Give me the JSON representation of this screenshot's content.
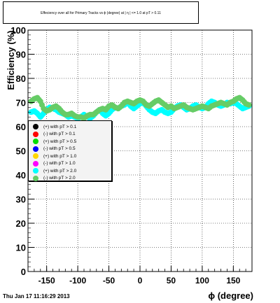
{
  "chart_data": {
    "type": "scatter",
    "title": "Effeciency over all for Primary Tracks vs ϕ (degree) at | η | <= 1.0 at pT > 0.11",
    "xlabel": "ϕ (degree)",
    "ylabel": "Efficiency (%)",
    "xlim": [
      -180,
      180
    ],
    "ylim": [
      0,
      100
    ],
    "xticks": [
      -150,
      -100,
      -50,
      0,
      50,
      100,
      150
    ],
    "yticks": [
      0,
      10,
      20,
      30,
      40,
      50,
      60,
      70,
      80,
      90,
      100
    ],
    "grid": true,
    "legend_position": "left-middle",
    "series": [
      {
        "name": "(+) with pT > 0.1",
        "color": "#000000",
        "values": []
      },
      {
        "name": "(-) with pT > 0.1",
        "color": "#ff0000",
        "values": []
      },
      {
        "name": "(+) with pT > 0.5",
        "color": "#00dd00",
        "values": []
      },
      {
        "name": "(-) with pT > 0.5",
        "color": "#0000ff",
        "values": []
      },
      {
        "name": "(+) with pT > 1.0",
        "color": "#ffd700",
        "values": []
      },
      {
        "name": "(-) with pT > 1.0",
        "color": "#ff00ff",
        "values": []
      },
      {
        "name": "(+) with pT > 2.0",
        "color": "#00ffff",
        "x": [
          -175,
          -170,
          -165,
          -160,
          -155,
          -150,
          -145,
          -140,
          -135,
          -130,
          -125,
          -120,
          -115,
          -110,
          -105,
          -100,
          -95,
          -90,
          -85,
          -80,
          -75,
          -70,
          -65,
          -60,
          -55,
          -50,
          -45,
          -40,
          -35,
          -30,
          -25,
          -20,
          -15,
          -10,
          -5,
          0,
          5,
          10,
          15,
          20,
          25,
          30,
          35,
          40,
          45,
          50,
          55,
          60,
          65,
          70,
          75,
          80,
          85,
          90,
          95,
          100,
          105,
          110,
          115,
          120,
          125,
          130,
          135,
          140,
          145,
          150,
          155,
          160,
          165,
          170,
          175
        ],
        "values": [
          66,
          66.5,
          65.5,
          64,
          65.5,
          67,
          68,
          67.5,
          67,
          66,
          65.5,
          65,
          64,
          64.5,
          64,
          63.5,
          64,
          65,
          64,
          63.5,
          64.5,
          66,
          67,
          65.5,
          64.5,
          65.5,
          67,
          68,
          67.5,
          68.5,
          69,
          70,
          68.5,
          67.5,
          68.5,
          69.5,
          70,
          68.5,
          67,
          66,
          65.5,
          66.5,
          67,
          66,
          65.5,
          66,
          67.5,
          68.5,
          69,
          68,
          67,
          67.5,
          68.5,
          69,
          68,
          67.5,
          68,
          69.5,
          70.5,
          70,
          69,
          68.5,
          69,
          70,
          69.5,
          70,
          69.5,
          68.5,
          67.5,
          68,
          68.5
        ]
      },
      {
        "name": "(-) with pT > 2.0",
        "color": "#66cc66",
        "x": [
          -175,
          -170,
          -165,
          -160,
          -155,
          -150,
          -145,
          -140,
          -135,
          -130,
          -125,
          -120,
          -115,
          -110,
          -105,
          -100,
          -95,
          -90,
          -85,
          -80,
          -75,
          -70,
          -65,
          -60,
          -55,
          -50,
          -45,
          -40,
          -35,
          -30,
          -25,
          -20,
          -15,
          -10,
          -5,
          0,
          5,
          10,
          15,
          20,
          25,
          30,
          35,
          40,
          45,
          50,
          55,
          60,
          65,
          70,
          75,
          80,
          85,
          90,
          95,
          100,
          105,
          110,
          115,
          120,
          125,
          130,
          135,
          140,
          145,
          150,
          155,
          160,
          165,
          170,
          175
        ],
        "values": [
          70.5,
          71.5,
          72,
          70.5,
          67.5,
          66.5,
          67,
          68,
          68.5,
          67.5,
          66,
          65,
          65,
          65.5,
          64.5,
          64,
          64,
          63.5,
          64.5,
          65,
          65,
          66,
          67,
          67.5,
          67,
          68.5,
          69,
          68,
          67.5,
          68.5,
          70,
          70.5,
          70,
          69.5,
          70.5,
          71,
          70.5,
          69,
          68.5,
          69.5,
          70.5,
          71,
          70,
          69,
          68,
          68.5,
          67.5,
          68,
          68.5,
          69,
          68,
          67.5,
          67,
          67.5,
          68,
          68.5,
          68,
          67.5,
          68.5,
          69,
          69.5,
          70,
          69.5,
          69,
          70,
          70.5,
          71.5,
          72,
          71,
          69.5,
          69
        ]
      }
    ]
  },
  "timestamp": "Thu Jan 17 11:16:29 2013",
  "colors": {
    "frame": "#000000",
    "grid": "#000000",
    "legend_bg": "#f3f3f3"
  }
}
